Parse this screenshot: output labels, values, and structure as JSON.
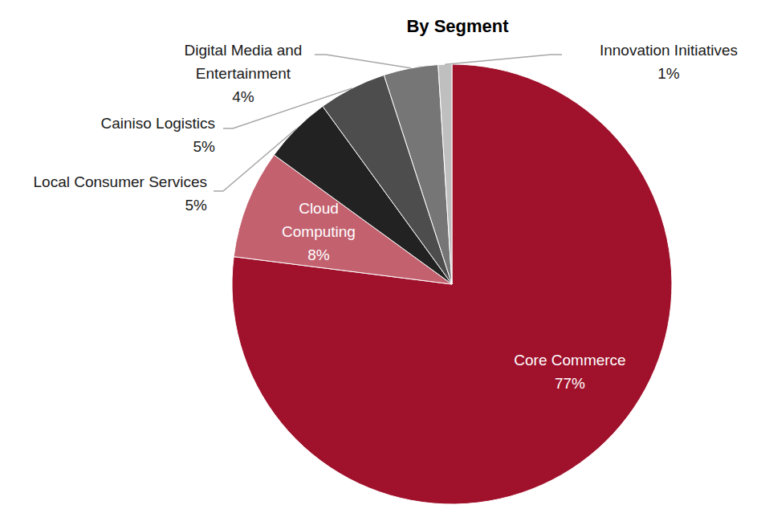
{
  "chart_data": {
    "type": "pie",
    "title": "By Segment",
    "categories": [
      "Core Commerce",
      "Cloud Computing",
      "Local Consumer Services",
      "Cainiso Logistics",
      "Digital Media and Entertainment",
      "Innovation Initiatives"
    ],
    "values": [
      77,
      8,
      5,
      5,
      4,
      1
    ],
    "value_labels": [
      "77%",
      "8%",
      "5%",
      "5%",
      "4%",
      "1%"
    ],
    "colors": [
      "#A0112B",
      "#C3616F",
      "#222222",
      "#4D4D4D",
      "#767676",
      "#BFBFBF"
    ],
    "data_labels": true
  }
}
